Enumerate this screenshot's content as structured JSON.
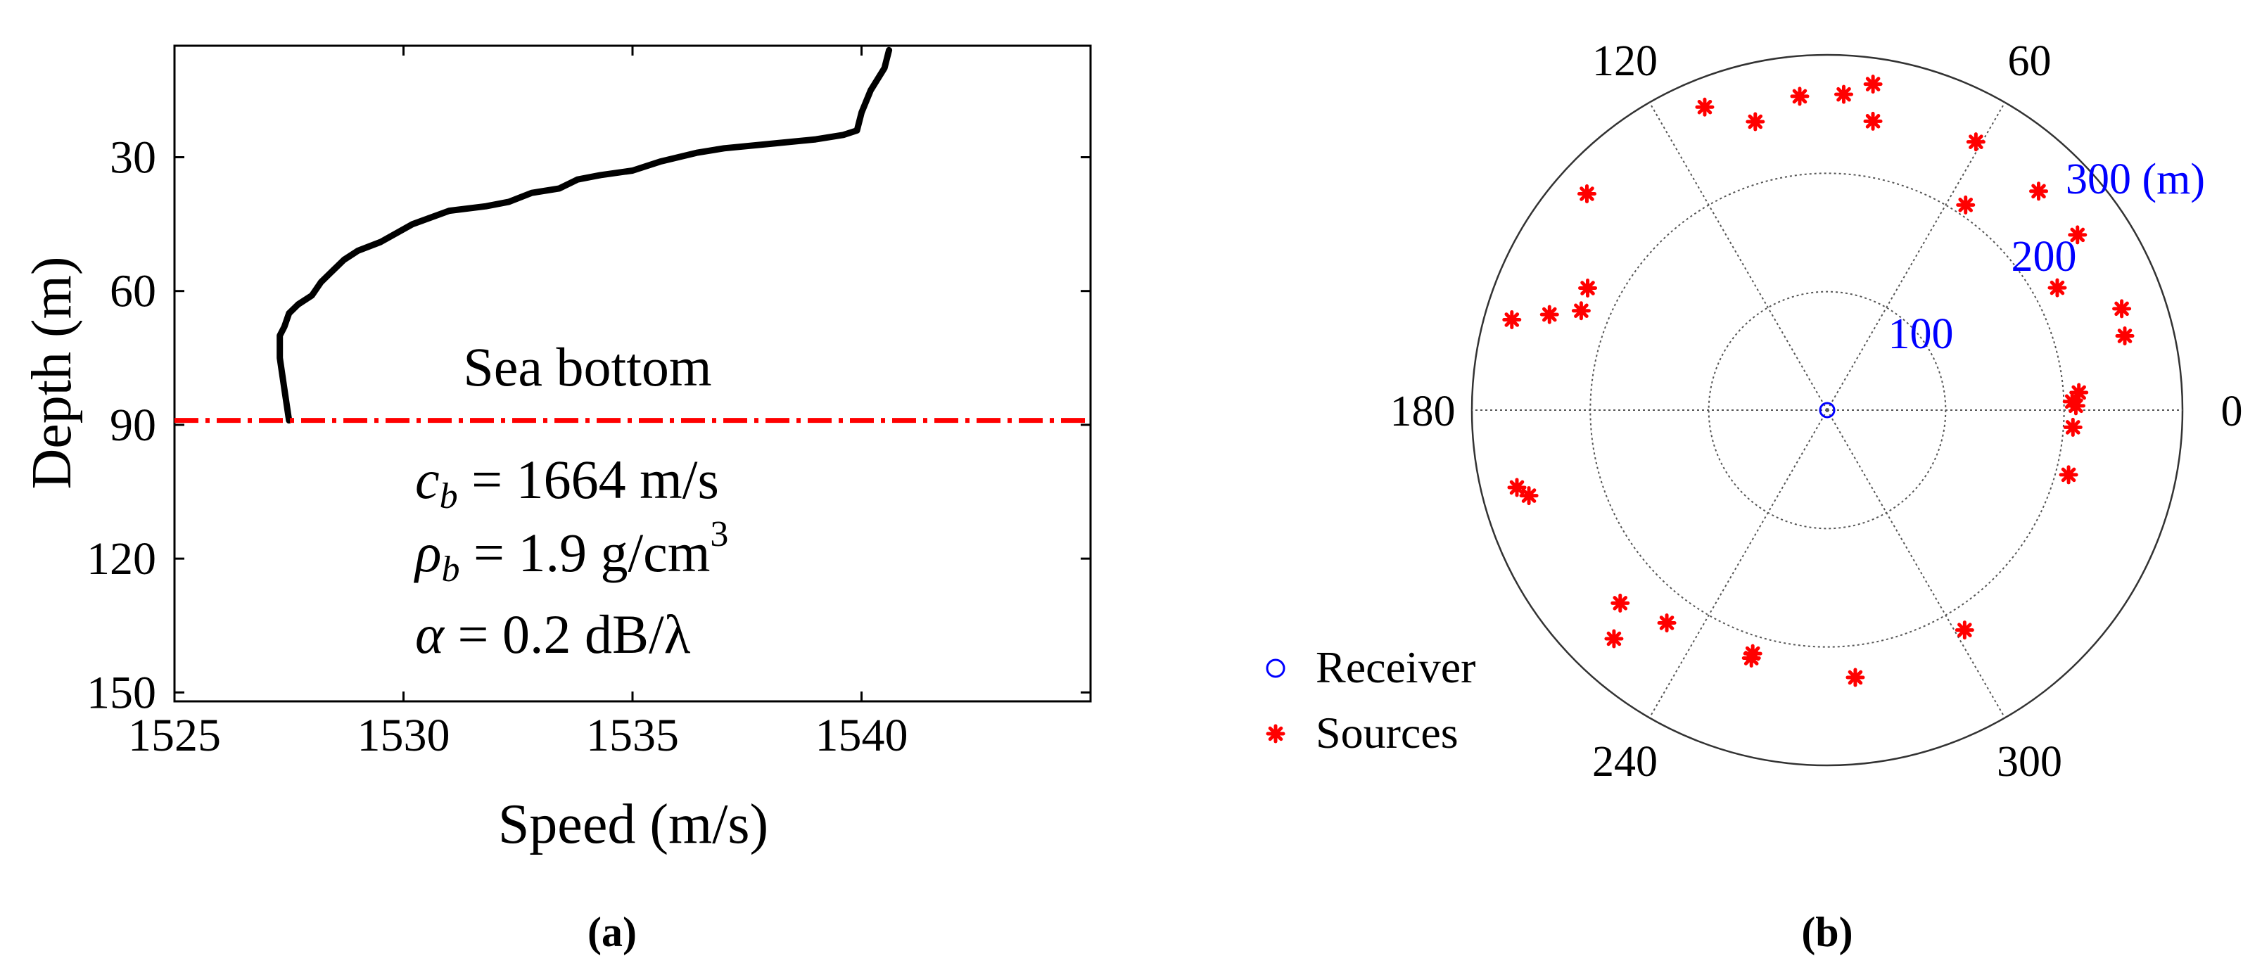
{
  "panel_a": {
    "caption": "(a)",
    "annotation": "Sea bottom",
    "params": [
      {
        "base": "c",
        "sub": "b",
        "rest": " = 1664 m/s",
        "sup": ""
      },
      {
        "base": "ρ",
        "sub": "b",
        "rest": " = 1.9 g/cm",
        "sup": "3"
      },
      {
        "base": "α",
        "sub": "",
        "rest": " = 0.2 dB/λ",
        "sup": ""
      }
    ]
  },
  "panel_b": {
    "caption": "(b)",
    "legend": [
      {
        "label": "Receiver",
        "marker": "circle",
        "color": "#0000ff"
      },
      {
        "label": "Sources",
        "marker": "asterisk",
        "color": "#ff0000"
      }
    ]
  },
  "colors": {
    "profile": "#000000",
    "bottom_line": "#ff0000",
    "sources": "#ff0000",
    "receiver": "#0000ff",
    "range_labels": "#0000ff",
    "grid": "#555555"
  },
  "chart_data": [
    {
      "type": "line",
      "xlabel": "Speed (m/s)",
      "ylabel": "Depth (m)",
      "xlim": [
        1525,
        1545
      ],
      "ylim": [
        5,
        152
      ],
      "y_reversed": true,
      "xticks": [
        1525,
        1530,
        1535,
        1540
      ],
      "yticks": [
        30,
        60,
        90,
        120,
        150
      ],
      "grid": false,
      "bottom_depth": 89,
      "series": [
        {
          "x": [
            1540.6,
            1540.5,
            1540.2,
            1540.0,
            1539.9,
            1539.6,
            1539.0,
            1538.0,
            1537.0,
            1536.4,
            1535.6,
            1535.0,
            1534.3,
            1533.8,
            1533.4,
            1532.8,
            1532.3,
            1531.8,
            1531.0,
            1530.2,
            1529.5,
            1529.0,
            1528.7,
            1528.4,
            1528.2,
            1528.0,
            1527.7,
            1527.5,
            1527.4,
            1527.3,
            1527.3,
            1527.4,
            1527.5
          ],
          "y": [
            6,
            10,
            15,
            20,
            24,
            25,
            26,
            27,
            28,
            29,
            31,
            33,
            34,
            35,
            37,
            38,
            40,
            41,
            42,
            45,
            49,
            51,
            53,
            56,
            58,
            61,
            63,
            65,
            68,
            70,
            75,
            82,
            89
          ]
        }
      ]
    },
    {
      "type": "scatter",
      "coordinate_system": "polar",
      "angle_ticks_deg": [
        0,
        60,
        120,
        180,
        240,
        300
      ],
      "range_ticks": [
        "100",
        "200",
        "300 (m)"
      ],
      "rmax": 300,
      "grid": true,
      "legend_position": "bottom-left",
      "series": [
        {
          "name": "Receiver",
          "r": [
            0
          ],
          "theta_deg": [
            0
          ]
        },
        {
          "name": "Sources",
          "r": [
            210,
            207,
            213,
            208,
            211,
            263,
            259,
            220,
            258,
            257,
            209,
            259,
            247,
            278,
            267,
            266,
            251,
            276,
            273,
            227,
            224,
            248,
            277,
            270,
            262,
            264,
            239,
            225,
            219,
            215,
            227,
            219
          ],
          "theta_deg": [
            1,
            2,
            4,
            356,
            345,
            19,
            14,
            28,
            35,
            46,
            56,
            61,
            81,
            82,
            87,
            95,
            104,
            112,
            138,
            153,
            158,
            161,
            164,
            194,
            196,
            227,
            223,
            233,
            253,
            253,
            276,
            302
          ]
        }
      ]
    }
  ]
}
